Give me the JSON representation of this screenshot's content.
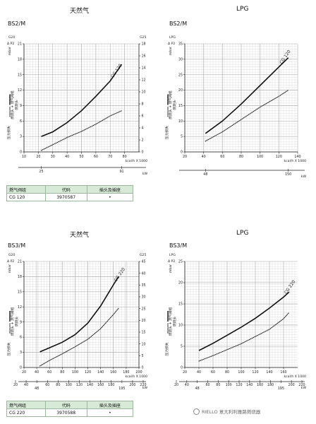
{
  "sections": [
    {
      "fuel": "天然气",
      "model": "BS2/M"
    },
    {
      "fuel": "LPG",
      "model": "BS2/M"
    },
    {
      "fuel": "天然气",
      "model": "BS3/M"
    },
    {
      "fuel": "LPG",
      "model": "BS3/M"
    }
  ],
  "tables": [
    {
      "headers": [
        "燃气阀组",
        "代码",
        "插头及插座"
      ],
      "row": [
        "CG 120",
        "3970587",
        "•"
      ]
    },
    {
      "headers": [
        "燃气阀组",
        "代码",
        "插头及插座"
      ],
      "row": [
        "CG 220",
        "3970588",
        "•"
      ]
    }
  ],
  "watermark": "RIELLO 意大利利雅路燃烧器",
  "chart_data": [
    {
      "type": "line",
      "title": "天然气",
      "model": "BS2/M",
      "left_axis": {
        "label": "Δ P2",
        "unit": "mbar",
        "top_label": "G20",
        "range": [
          0,
          21
        ],
        "ticks": [
          0,
          3,
          6,
          9,
          12,
          15,
          18,
          21
        ]
      },
      "right_axis": {
        "top_label": "G25",
        "range": [
          0,
          18
        ],
        "ticks": [
          0,
          2,
          4,
          6,
          8,
          10,
          12,
          14,
          16,
          18
        ]
      },
      "x_axis": {
        "unit": "kcal/h X 1000",
        "range": [
          10,
          90
        ],
        "ticks": [
          "10",
          "20",
          "30",
          "40",
          "50",
          "60",
          "70",
          "80"
        ]
      },
      "kw_axis": {
        "unit": "kW",
        "ticks": [
          "25",
          "91"
        ]
      },
      "legend": [
        "燃烧头 + 燃气阀组",
        "燃烧头",
        "压力损失"
      ],
      "curve_label": "CG 120",
      "series": [
        {
          "name": "燃烧头 + 燃气阀组",
          "style": "solid",
          "x": [
            22,
            30,
            40,
            50,
            60,
            70,
            78
          ],
          "y": [
            3.0,
            3.9,
            5.7,
            8.0,
            10.8,
            13.8,
            17.0
          ]
        },
        {
          "name": "燃烧头",
          "style": "dotted",
          "x": [
            22,
            30,
            40,
            50,
            60,
            70,
            78
          ],
          "y": [
            0.3,
            1.4,
            2.8,
            4.0,
            5.4,
            7.0,
            8.0
          ]
        }
      ]
    },
    {
      "type": "line",
      "title": "LPG",
      "model": "BS2/M",
      "left_axis": {
        "label": "Δ P2",
        "unit": "mbar",
        "top_label": "LPG",
        "range": [
          0,
          35
        ],
        "ticks": [
          0,
          5,
          10,
          15,
          20,
          25,
          30,
          35
        ]
      },
      "x_axis": {
        "unit": "kcal/h X 1000",
        "range": [
          20,
          140
        ],
        "ticks": [
          "20",
          "40",
          "60",
          "80",
          "100",
          "120",
          "140"
        ]
      },
      "kw_axis": {
        "unit": "kW",
        "ticks": [
          "48",
          "150"
        ]
      },
      "legend": [
        "燃烧头 + 燃气阀组",
        "燃烧头",
        "压力损失"
      ],
      "curve_label": "CG 120",
      "series": [
        {
          "name": "燃烧头 + 燃气阀组",
          "style": "solid",
          "x": [
            42,
            60,
            80,
            100,
            120,
            130
          ],
          "y": [
            6.0,
            10.0,
            15.5,
            21.5,
            27.5,
            30.5
          ]
        },
        {
          "name": "燃烧头",
          "style": "dotted",
          "x": [
            42,
            60,
            80,
            100,
            120,
            130
          ],
          "y": [
            3.5,
            6.5,
            10.5,
            14.5,
            18.0,
            20.0
          ]
        }
      ]
    },
    {
      "type": "line",
      "title": "天然气",
      "model": "BS3/M",
      "left_axis": {
        "label": "Δ P2",
        "unit": "mbar",
        "top_label": "G20",
        "range": [
          0,
          21
        ],
        "ticks": [
          0,
          3,
          6,
          9,
          12,
          15,
          18,
          21
        ]
      },
      "right_axis": {
        "top_label": "G25",
        "range": [
          0,
          45
        ],
        "ticks": [
          0,
          5,
          10,
          15,
          20,
          25,
          30,
          35,
          40,
          45
        ]
      },
      "x_axis": {
        "unit": "kcal/h X 1000",
        "range": [
          20,
          200
        ],
        "ticks": [
          "20",
          "40",
          "60",
          "80",
          "100",
          "120",
          "140",
          "160",
          "180",
          "200"
        ]
      },
      "kw_axis": {
        "unit": "kW",
        "ticks": [
          "20",
          "40",
          "48",
          "60",
          "80",
          "100",
          "120",
          "140",
          "160",
          "180",
          "195",
          "200",
          "220"
        ]
      },
      "legend": [
        "燃烧头 + 燃气阀组",
        "燃烧头",
        "压力损失"
      ],
      "curve_label": "CG 220",
      "series": [
        {
          "name": "燃烧头 + 燃气阀组",
          "style": "solid",
          "x": [
            45,
            60,
            80,
            100,
            120,
            140,
            160,
            168
          ],
          "y": [
            3.1,
            3.9,
            5.0,
            6.5,
            8.8,
            12.2,
            16.4,
            18.0
          ]
        },
        {
          "name": "燃烧头",
          "style": "dotted",
          "x": [
            45,
            60,
            80,
            100,
            120,
            140,
            160,
            168
          ],
          "y": [
            0.3,
            1.4,
            2.7,
            4.1,
            5.6,
            7.7,
            10.5,
            11.7
          ]
        }
      ]
    },
    {
      "type": "line",
      "title": "LPG",
      "model": "BS3/M",
      "left_axis": {
        "label": "Δ P2",
        "unit": "mbar",
        "top_label": "LPG",
        "range": [
          0,
          25
        ],
        "ticks": [
          0,
          5,
          10,
          15,
          20,
          25
        ]
      },
      "x_axis": {
        "unit": "kcal/h X 1000",
        "range": [
          20,
          180
        ],
        "ticks": [
          "20",
          "40",
          "60",
          "80",
          "100",
          "120",
          "140",
          "160"
        ]
      },
      "kw_axis": {
        "unit": "kW",
        "ticks": [
          "20",
          "40",
          "48",
          "60",
          "80",
          "100",
          "120",
          "140",
          "160",
          "180",
          "195",
          "200",
          "220"
        ]
      },
      "legend": [
        "燃烧头 + 燃气阀组",
        "燃烧头",
        "压力损失"
      ],
      "curve_label": "CG 220",
      "series": [
        {
          "name": "燃烧头 + 燃气阀组",
          "style": "solid",
          "x": [
            40,
            60,
            80,
            100,
            120,
            140,
            160,
            168
          ],
          "y": [
            4.0,
            5.7,
            7.6,
            9.5,
            11.6,
            14.0,
            16.6,
            17.8
          ]
        },
        {
          "name": "燃烧头",
          "style": "dotted",
          "x": [
            40,
            60,
            80,
            100,
            120,
            140,
            160,
            168
          ],
          "y": [
            1.5,
            2.8,
            4.2,
            5.6,
            7.3,
            9.0,
            11.5,
            13.0
          ]
        }
      ]
    }
  ]
}
